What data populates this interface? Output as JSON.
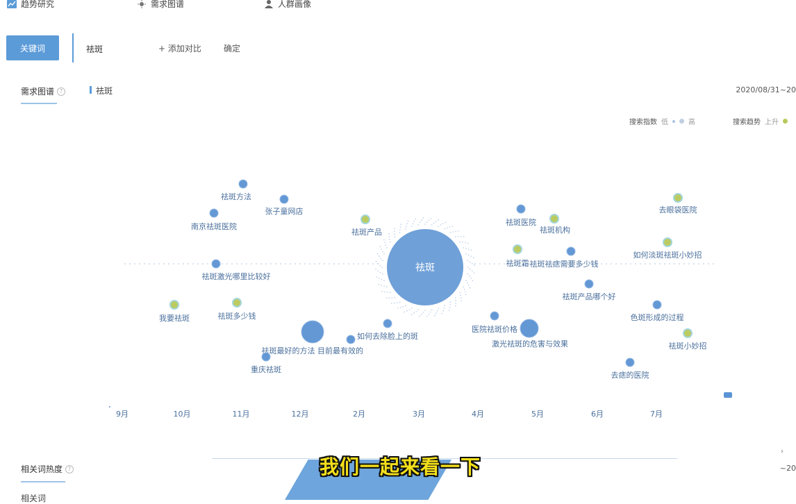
{
  "nav": {
    "items": [
      {
        "label": "趋势研究",
        "icon": "chart-icon"
      },
      {
        "label": "需求图谱",
        "icon": "sun-icon"
      },
      {
        "label": "人群画像",
        "icon": "user-icon"
      }
    ]
  },
  "search": {
    "tab_label": "关键词",
    "keyword": "祛斑",
    "add_compare": "+ 添加对比",
    "confirm": "确定"
  },
  "graph_section": {
    "title": "需求图谱",
    "keyword_label": "祛斑",
    "date_range": "2020/08/31~20",
    "legend": {
      "search_index_label": "搜索指数",
      "low": "低",
      "high": "高",
      "search_trend_label": "搜索趋势",
      "trend_up": "上升"
    }
  },
  "colors": {
    "accent": "#5b9bd8",
    "bubble_blue": "#5b93d3",
    "bubble_rising": "#b8c95a"
  },
  "chart_data": {
    "type": "bubble",
    "center": {
      "label": "祛斑"
    },
    "x_ticks": [
      "9月",
      "10月",
      "11月",
      "12月",
      "2月",
      "3月",
      "4月",
      "5月",
      "6月",
      "7月"
    ],
    "nodes": [
      {
        "label": "祛斑方法",
        "trend": "flat",
        "size": 1
      },
      {
        "label": "张子童网店",
        "trend": "flat",
        "size": 1
      },
      {
        "label": "南京祛斑医院",
        "trend": "flat",
        "size": 1
      },
      {
        "label": "祛斑产品",
        "trend": "up",
        "size": 1
      },
      {
        "label": "祛斑激光哪里比较好",
        "trend": "flat",
        "size": 1
      },
      {
        "label": "我要祛斑",
        "trend": "up",
        "size": 1
      },
      {
        "label": "祛斑多少钱",
        "trend": "up",
        "size": 1
      },
      {
        "label": "祛斑最好的方法",
        "trend": "flat",
        "size": 3
      },
      {
        "label": "目前最有效的",
        "trend": "flat",
        "size": 1
      },
      {
        "label": "如何去除脸上的斑",
        "trend": "flat",
        "size": 1
      },
      {
        "label": "重庆祛斑",
        "trend": "flat",
        "size": 1
      },
      {
        "label": "祛斑医院",
        "trend": "flat",
        "size": 1
      },
      {
        "label": "祛斑机构",
        "trend": "up",
        "size": 1
      },
      {
        "label": "祛斑霜",
        "trend": "up",
        "size": 1
      },
      {
        "label": "医院祛斑价格",
        "trend": "flat",
        "size": 1
      },
      {
        "label": "激光祛斑的危害与效果",
        "trend": "flat",
        "size": 2
      },
      {
        "label": "祛斑祛痣需要多少钱",
        "trend": "flat",
        "size": 1
      },
      {
        "label": "祛斑产品哪个好",
        "trend": "flat",
        "size": 1
      },
      {
        "label": "去眼袋医院",
        "trend": "up",
        "size": 1
      },
      {
        "label": "如何淡斑祛斑小妙招",
        "trend": "up",
        "size": 1
      },
      {
        "label": "色斑形成的过程",
        "trend": "flat",
        "size": 1
      },
      {
        "label": "祛斑小妙招",
        "trend": "up",
        "size": 1
      },
      {
        "label": "去痣的医院",
        "trend": "flat",
        "size": 1
      }
    ]
  },
  "related_section": {
    "title": "相关词热度",
    "sub_label": "相关词",
    "right_text": "~20"
  },
  "subtitle": "我们一起来看一下"
}
